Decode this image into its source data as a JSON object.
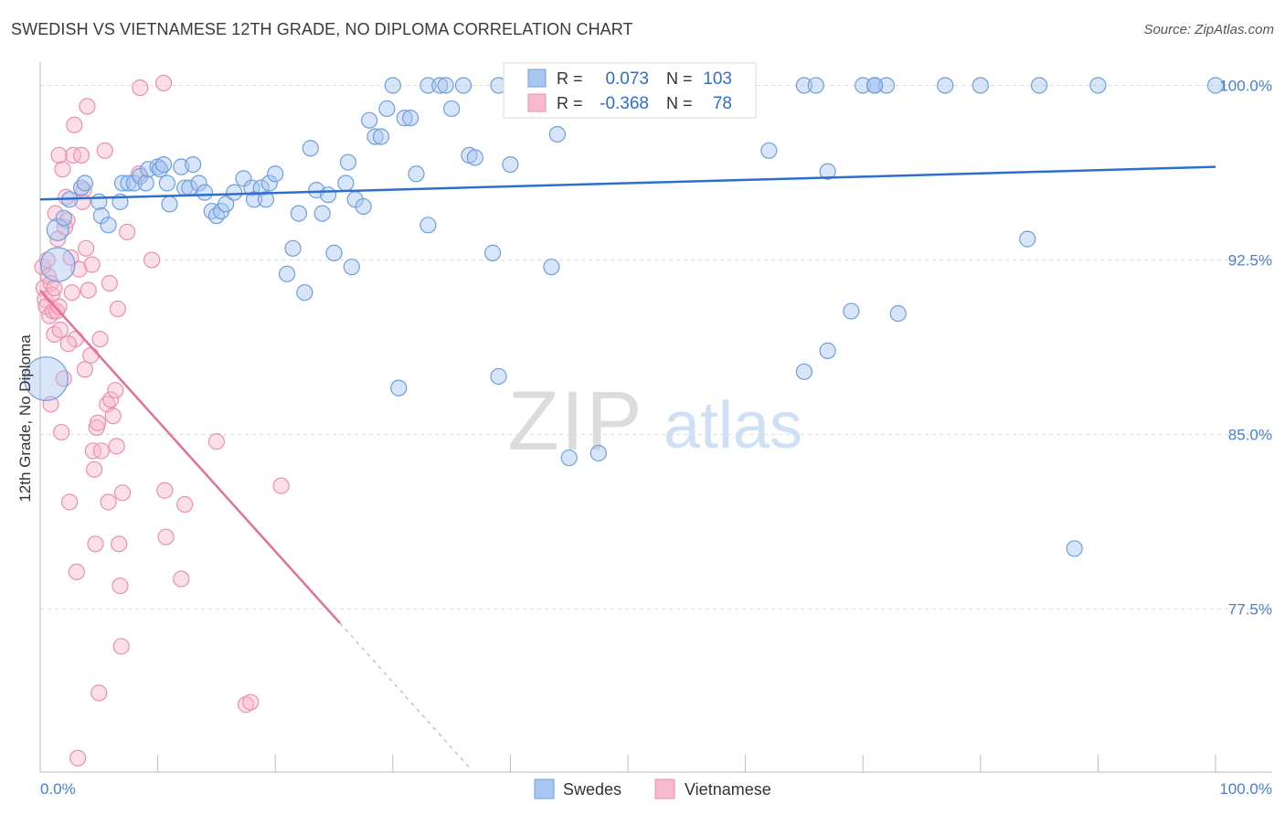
{
  "title": "SWEDISH VS VIETNAMESE 12TH GRADE, NO DIPLOMA CORRELATION CHART",
  "source": "Source: ZipAtlas.com",
  "watermark": {
    "zip": "ZIP",
    "atlas": "atlas"
  },
  "legend_box": {
    "rows": [
      {
        "r_label": "R = ",
        "r_value": "0.073",
        "n_label": "N = ",
        "n_value": "103"
      },
      {
        "r_label": "R = ",
        "r_value": "-0.368",
        "n_label": "N = ",
        "n_value": "78"
      }
    ]
  },
  "colors": {
    "blue_fill": "#a9c6f0",
    "blue_stroke": "#6e9fdc",
    "blue_line": "#2f6fcc",
    "pink_fill": "#f6b9cd",
    "pink_stroke": "#ec8fae",
    "pink_line": "#e4709a",
    "axis_text": "#4a7fd0",
    "grid": "#dddddd"
  },
  "chart_data": {
    "type": "scatter",
    "title": "SWEDISH VS VIETNAMESE 12TH GRADE, NO DIPLOMA CORRELATION CHART",
    "ylabel": "12th Grade, No Diploma",
    "xlabel": "",
    "xlim": [
      0,
      100
    ],
    "ylim": [
      70.5,
      101
    ],
    "x_tick_labels": [
      "0.0%",
      "100.0%"
    ],
    "y_ticks": [
      {
        "value": 100,
        "label": "100.0%"
      },
      {
        "value": 92.5,
        "label": "92.5%"
      },
      {
        "value": 85,
        "label": "85.0%"
      },
      {
        "value": 77.5,
        "label": "77.5%"
      }
    ],
    "grid": true,
    "legend_position": "bottom-center",
    "series": [
      {
        "name": "Swedes",
        "R": 0.073,
        "N": 103,
        "trend": {
          "x0": 0,
          "y0": 95.1,
          "x1": 100,
          "y1": 96.5
        },
        "points": [
          [
            1.5,
            92.3,
            2.2
          ],
          [
            0.5,
            87.4,
            2.8
          ],
          [
            1.5,
            93.8,
            1.4
          ],
          [
            2,
            94.3,
            1
          ],
          [
            2.5,
            95.1,
            1
          ],
          [
            3.5,
            95.6,
            1
          ],
          [
            3.8,
            95.8,
            1
          ],
          [
            5,
            95,
            1
          ],
          [
            5.2,
            94.4,
            1
          ],
          [
            5.8,
            94,
            1
          ],
          [
            6.8,
            95,
            1
          ],
          [
            7,
            95.8,
            1
          ],
          [
            7.5,
            95.8,
            1
          ],
          [
            8,
            95.8,
            1
          ],
          [
            8.5,
            96.1,
            1
          ],
          [
            9,
            95.8,
            1
          ],
          [
            9.2,
            96.4,
            1
          ],
          [
            10,
            96.5,
            1
          ],
          [
            10.2,
            96.4,
            1
          ],
          [
            10.5,
            96.6,
            1
          ],
          [
            10.8,
            95.8,
            1
          ],
          [
            11,
            94.9,
            1
          ],
          [
            12,
            96.5,
            1
          ],
          [
            12.3,
            95.6,
            1
          ],
          [
            12.7,
            95.6,
            1
          ],
          [
            13,
            96.6,
            1
          ],
          [
            13.5,
            95.8,
            1
          ],
          [
            14,
            95.4,
            1
          ],
          [
            14.6,
            94.6,
            1
          ],
          [
            15,
            94.4,
            1
          ],
          [
            15.4,
            94.6,
            1
          ],
          [
            15.8,
            94.9,
            1
          ],
          [
            16.5,
            95.4,
            1
          ],
          [
            17.3,
            96,
            1
          ],
          [
            18,
            95.6,
            1
          ],
          [
            18.2,
            95.1,
            1
          ],
          [
            18.8,
            95.6,
            1
          ],
          [
            19.2,
            95.1,
            1
          ],
          [
            19.5,
            95.8,
            1
          ],
          [
            20,
            96.2,
            1
          ],
          [
            21.5,
            93,
            1
          ],
          [
            21,
            91.9,
            1
          ],
          [
            22,
            94.5,
            1
          ],
          [
            22.5,
            91.1,
            1
          ],
          [
            23,
            97.3,
            1
          ],
          [
            23.5,
            95.5,
            1
          ],
          [
            24,
            94.5,
            1
          ],
          [
            24.5,
            95.3,
            1
          ],
          [
            25,
            92.8,
            1
          ],
          [
            26,
            95.8,
            1
          ],
          [
            26.2,
            96.7,
            1
          ],
          [
            26.5,
            92.2,
            1
          ],
          [
            26.8,
            95.1,
            1
          ],
          [
            27.5,
            94.8,
            1
          ],
          [
            28,
            98.5,
            1
          ],
          [
            28.5,
            97.8,
            1
          ],
          [
            29,
            97.8,
            1
          ],
          [
            29.5,
            99,
            1
          ],
          [
            30,
            100,
            1
          ],
          [
            31,
            98.6,
            1
          ],
          [
            31.5,
            98.6,
            1
          ],
          [
            32,
            96.2,
            1
          ],
          [
            33,
            100,
            1
          ],
          [
            34,
            100,
            1
          ],
          [
            34.5,
            100,
            1
          ],
          [
            35,
            99,
            1
          ],
          [
            36,
            100,
            1
          ],
          [
            36.5,
            97,
            1
          ],
          [
            37,
            96.9,
            1
          ],
          [
            38.5,
            92.8,
            1
          ],
          [
            39,
            100,
            1
          ],
          [
            40,
            96.6,
            1
          ],
          [
            41,
            100,
            1
          ],
          [
            42,
            100,
            1
          ],
          [
            42.5,
            100,
            1
          ],
          [
            43,
            100,
            1
          ],
          [
            43.5,
            92.2,
            1
          ],
          [
            44,
            97.9,
            1
          ],
          [
            46,
            100,
            1
          ],
          [
            50,
            100,
            1
          ],
          [
            55,
            100,
            1
          ],
          [
            60,
            100,
            1
          ],
          [
            65,
            100,
            1
          ],
          [
            70,
            100,
            1
          ],
          [
            71,
            100,
            1
          ],
          [
            62,
            97.2,
            1
          ],
          [
            67,
            96.3,
            1
          ],
          [
            71,
            100,
            1
          ],
          [
            72,
            100,
            1
          ],
          [
            77,
            100,
            1
          ],
          [
            80,
            100,
            1
          ],
          [
            85,
            100,
            1
          ],
          [
            90,
            100,
            1
          ],
          [
            100,
            100,
            1
          ],
          [
            71,
            100,
            1
          ],
          [
            66,
            100,
            1
          ],
          [
            33,
            94,
            1
          ],
          [
            30.5,
            87,
            1
          ],
          [
            39,
            87.5,
            1
          ],
          [
            45,
            84,
            1
          ],
          [
            47.5,
            84.2,
            1
          ],
          [
            69,
            90.3,
            1
          ],
          [
            73,
            90.2,
            1
          ],
          [
            65,
            87.7,
            1
          ],
          [
            67,
            88.6,
            1
          ],
          [
            84,
            93.4,
            1
          ],
          [
            88,
            80.1,
            1
          ]
        ]
      },
      {
        "name": "Vietnamese",
        "R": -0.368,
        "N": 78,
        "trend": {
          "x0": 0,
          "y0": 91.2,
          "x1": 25.5,
          "y1": 76.9,
          "dash_x1": 36.5,
          "dash_y1": 70.7
        },
        "points": [
          [
            0.2,
            92.2,
            1
          ],
          [
            0.3,
            91.3,
            1
          ],
          [
            0.4,
            90.8,
            1
          ],
          [
            0.5,
            90.5,
            1
          ],
          [
            0.6,
            92.5,
            1
          ],
          [
            0.7,
            91.8,
            1
          ],
          [
            0.8,
            90.1,
            1
          ],
          [
            0.9,
            91.5,
            1
          ],
          [
            1,
            91,
            1
          ],
          [
            1.1,
            90.3,
            1
          ],
          [
            1.2,
            89.3,
            1
          ],
          [
            1.3,
            94.5,
            1
          ],
          [
            1.4,
            90.3,
            1
          ],
          [
            1.5,
            93.4,
            1
          ],
          [
            1.6,
            90.5,
            1
          ],
          [
            1.7,
            89.5,
            1
          ],
          [
            1.8,
            85.1,
            1
          ],
          [
            2,
            87.4,
            1
          ],
          [
            2.1,
            93.9,
            1
          ],
          [
            2.2,
            95.2,
            1
          ],
          [
            2.5,
            82.1,
            1
          ],
          [
            2.6,
            92.6,
            1
          ],
          [
            2.7,
            91.1,
            1
          ],
          [
            2.8,
            97,
            1
          ],
          [
            2.9,
            98.3,
            1
          ],
          [
            3,
            89.1,
            1
          ],
          [
            3.1,
            79.1,
            1
          ],
          [
            3.2,
            71.1,
            1
          ],
          [
            3.3,
            92.1,
            1
          ],
          [
            3.5,
            97,
            1
          ],
          [
            3.6,
            95,
            1
          ],
          [
            3.8,
            87.8,
            1
          ],
          [
            3.9,
            93,
            1
          ],
          [
            4,
            99.1,
            1
          ],
          [
            4.1,
            91.2,
            1
          ],
          [
            4.3,
            88.4,
            1
          ],
          [
            4.5,
            84.3,
            1
          ],
          [
            4.6,
            83.5,
            1
          ],
          [
            4.7,
            80.3,
            1
          ],
          [
            4.8,
            85.3,
            1
          ],
          [
            4.9,
            85.5,
            1
          ],
          [
            5,
            73.9,
            1
          ],
          [
            5.1,
            89.1,
            1
          ],
          [
            5.2,
            84.3,
            1
          ],
          [
            5.5,
            97.2,
            1
          ],
          [
            5.7,
            86.3,
            1
          ],
          [
            5.8,
            82.1,
            1
          ],
          [
            5.9,
            91.5,
            1
          ],
          [
            6,
            86.5,
            1
          ],
          [
            6.2,
            85.8,
            1
          ],
          [
            6.4,
            86.9,
            1
          ],
          [
            6.5,
            84.5,
            1
          ],
          [
            6.6,
            90.4,
            1
          ],
          [
            6.7,
            80.3,
            1
          ],
          [
            6.8,
            78.5,
            1
          ],
          [
            6.9,
            75.9,
            1
          ],
          [
            7,
            82.5,
            1
          ],
          [
            7.4,
            93.7,
            1
          ],
          [
            8.4,
            96.2,
            1
          ],
          [
            8.5,
            99.9,
            1
          ],
          [
            9.5,
            92.5,
            1
          ],
          [
            10.5,
            100.1,
            1
          ],
          [
            10.6,
            82.6,
            1
          ],
          [
            10.7,
            80.6,
            1
          ],
          [
            12,
            78.8,
            1
          ],
          [
            12.3,
            82,
            1
          ],
          [
            15,
            84.7,
            1
          ],
          [
            17.5,
            73.4,
            1
          ],
          [
            17.9,
            73.5,
            1
          ],
          [
            20.5,
            82.8,
            1
          ],
          [
            1.9,
            96.4,
            1
          ],
          [
            2.3,
            94.2,
            1
          ],
          [
            1.6,
            97,
            1
          ],
          [
            2.4,
            88.9,
            1
          ],
          [
            0.9,
            86.3,
            1
          ],
          [
            4.4,
            92.3,
            1
          ],
          [
            3.7,
            95.5,
            1
          ],
          [
            1.2,
            91.3,
            1
          ]
        ]
      }
    ]
  }
}
